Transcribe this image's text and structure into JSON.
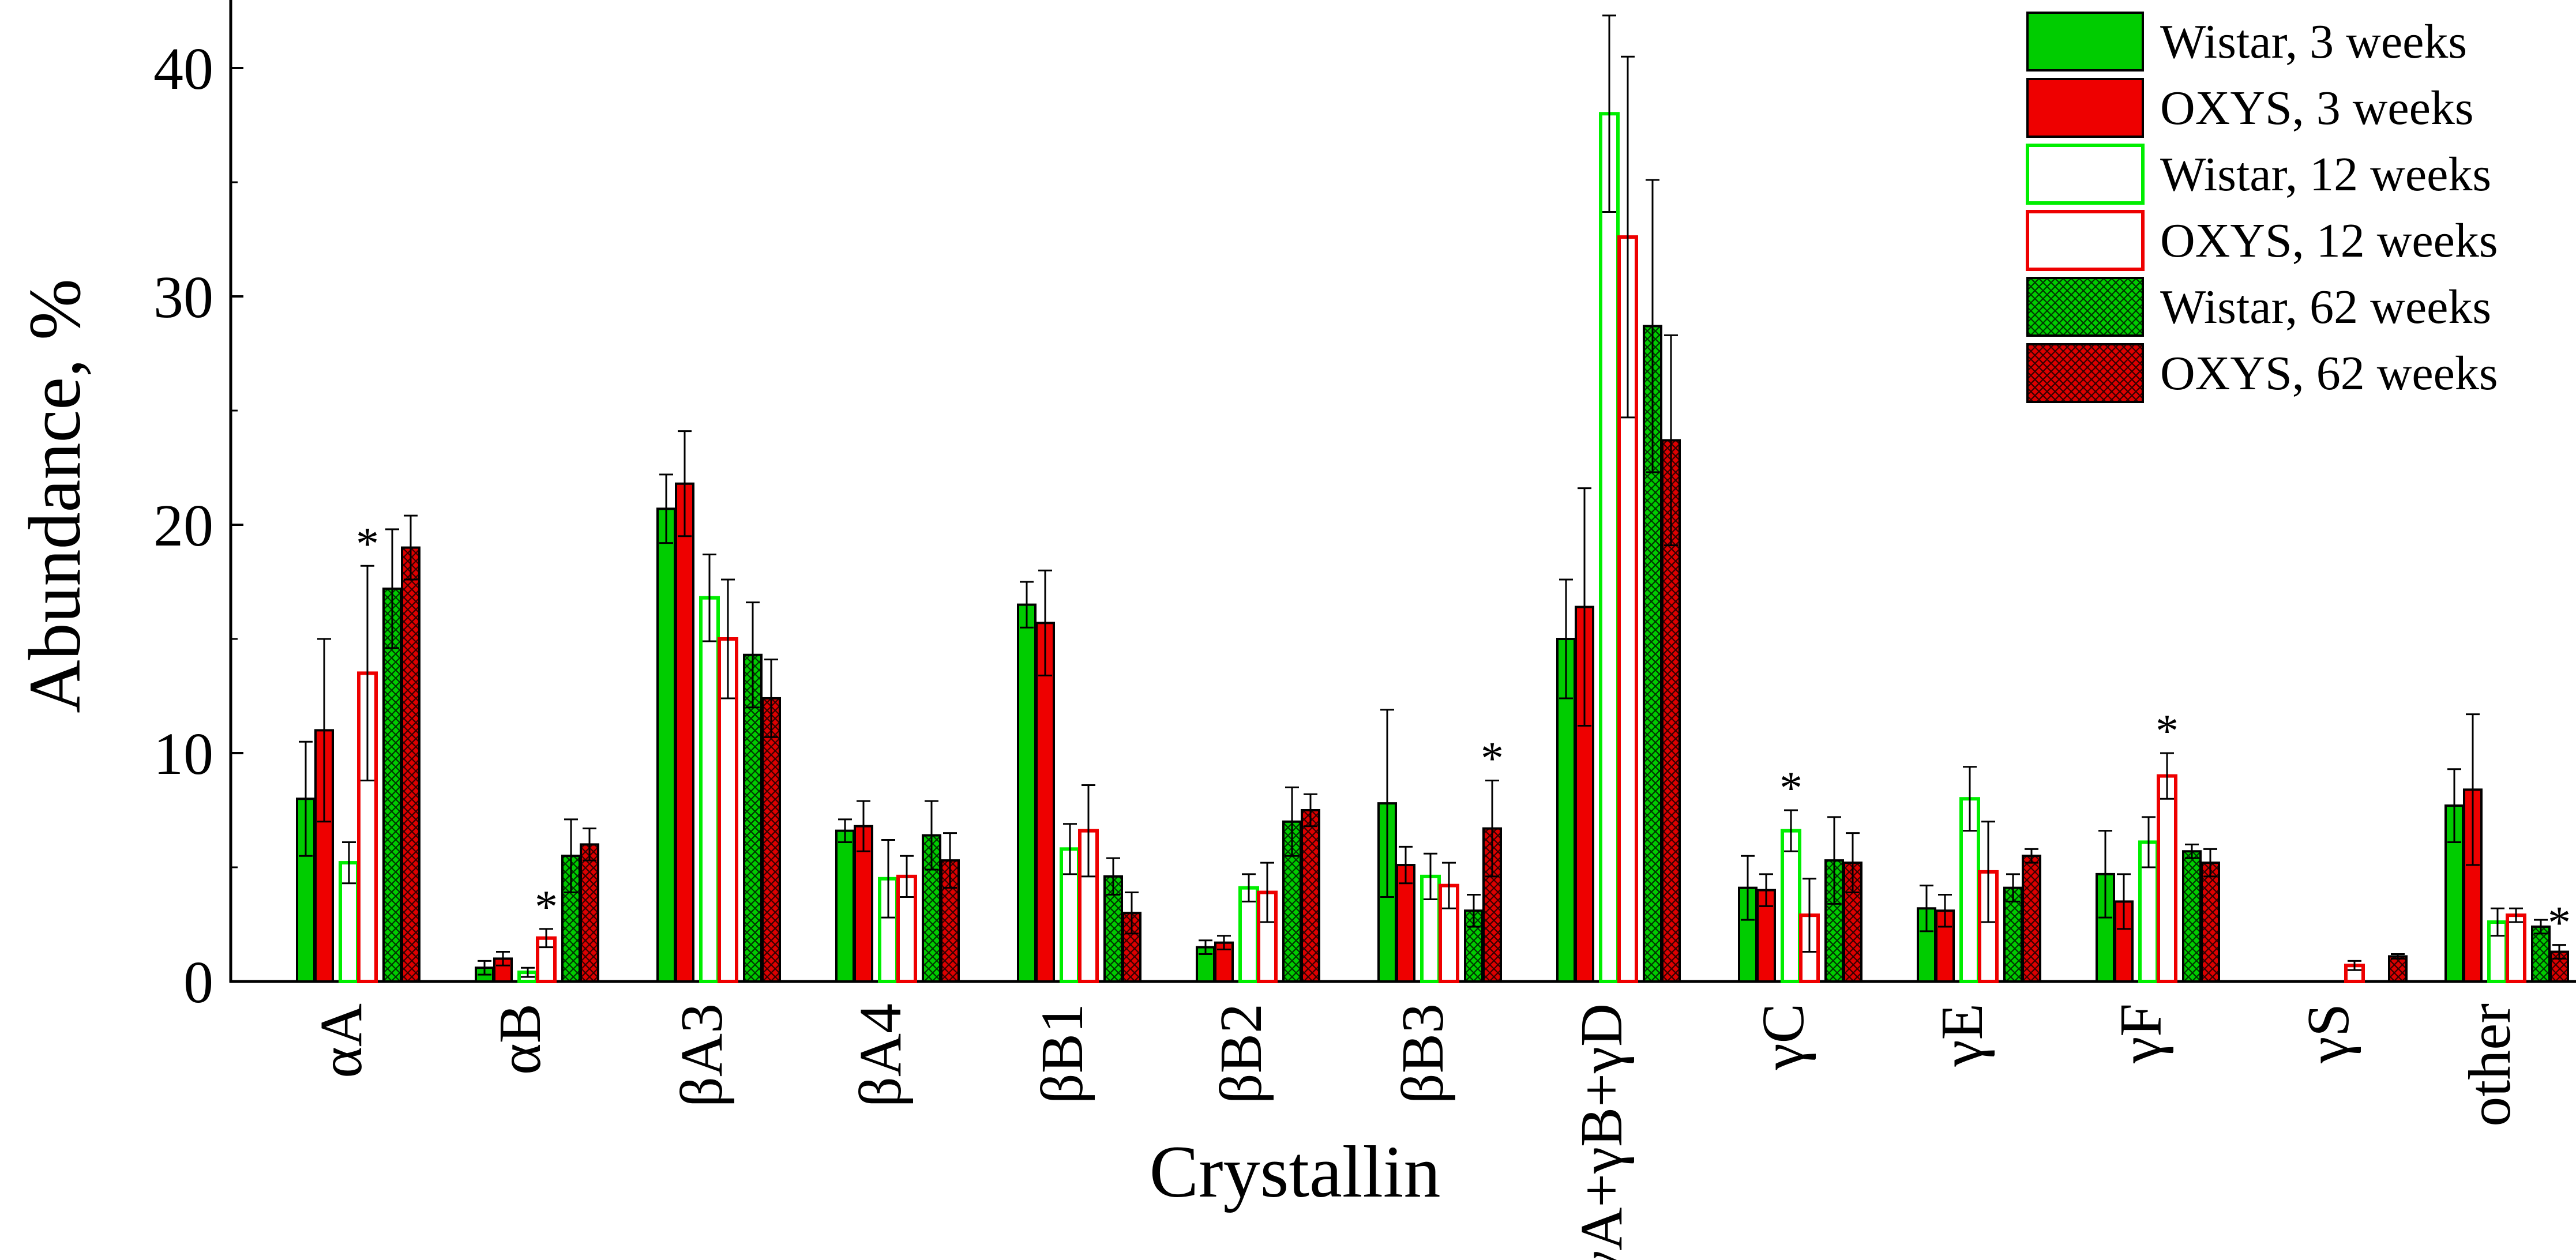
{
  "chart_data": {
    "type": "bar",
    "xlabel": "Crystallin",
    "ylabel": "Abundance, %",
    "ylim": [
      0,
      43
    ],
    "yticks": [
      0,
      10,
      20,
      30,
      40
    ],
    "grid": false,
    "legend_position": "top-right",
    "categories": [
      "αA",
      "αB",
      "βA3",
      "βA4",
      "βB1",
      "βB2",
      "βB3",
      "γA+γB+γD",
      "γC",
      "γE",
      "γF",
      "γS",
      "other"
    ],
    "series": [
      {
        "name": "Wistar, 3 weeks",
        "color": "#00cc00",
        "style": "solid",
        "values": [
          8.0,
          0.6,
          20.7,
          6.6,
          16.5,
          1.5,
          7.8,
          15.0,
          4.1,
          3.2,
          4.7,
          null,
          7.7
        ],
        "errors": [
          2.5,
          0.3,
          1.5,
          0.5,
          1.0,
          0.3,
          4.1,
          2.6,
          1.4,
          1.0,
          1.9,
          null,
          1.6
        ]
      },
      {
        "name": "OXYS, 3 weeks",
        "color": "#ee0000",
        "style": "solid",
        "values": [
          11.0,
          1.0,
          21.8,
          6.8,
          15.7,
          1.7,
          5.1,
          16.4,
          4.0,
          3.1,
          3.5,
          null,
          8.4
        ],
        "errors": [
          4.0,
          0.3,
          2.3,
          1.1,
          2.3,
          0.3,
          0.8,
          5.2,
          0.7,
          0.7,
          1.2,
          null,
          3.3
        ]
      },
      {
        "name": "Wistar, 12 weeks",
        "color": "#00ee00",
        "style": "outline",
        "values": [
          5.2,
          0.4,
          16.8,
          4.5,
          5.8,
          4.1,
          4.6,
          38.0,
          6.6,
          8.0,
          6.1,
          null,
          2.6
        ],
        "errors": [
          0.9,
          0.2,
          1.9,
          1.7,
          1.1,
          0.6,
          1.0,
          4.3,
          0.9,
          1.4,
          1.1,
          null,
          0.6
        ]
      },
      {
        "name": "OXYS, 12 weeks",
        "color": "#ee0000",
        "style": "outline",
        "values": [
          13.5,
          1.9,
          15.0,
          4.6,
          6.6,
          3.9,
          4.2,
          32.6,
          2.9,
          4.8,
          9.0,
          0.7,
          2.9
        ],
        "errors": [
          4.7,
          0.4,
          2.6,
          0.9,
          2.0,
          1.3,
          1.0,
          7.9,
          1.6,
          2.2,
          1.0,
          0.2,
          0.3
        ]
      },
      {
        "name": "Wistar, 62 weeks",
        "color": "#00cc00",
        "style": "crosshatch",
        "values": [
          17.2,
          5.5,
          14.3,
          6.4,
          4.6,
          7.0,
          3.1,
          28.7,
          5.3,
          4.1,
          5.7,
          null,
          2.4
        ],
        "errors": [
          2.6,
          1.6,
          2.3,
          1.5,
          0.8,
          1.5,
          0.7,
          6.4,
          1.9,
          0.6,
          0.3,
          null,
          0.3
        ]
      },
      {
        "name": "OXYS, 62 weeks",
        "color": "#ee0000",
        "style": "crosshatch",
        "values": [
          19.0,
          6.0,
          12.4,
          5.3,
          3.0,
          7.5,
          6.7,
          23.7,
          5.2,
          5.5,
          5.2,
          1.1,
          1.3
        ],
        "errors": [
          1.4,
          0.7,
          1.7,
          1.2,
          0.9,
          0.7,
          2.1,
          4.6,
          1.3,
          0.3,
          0.6,
          0.1,
          0.3
        ]
      }
    ],
    "significance_markers": [
      {
        "category": "αA",
        "series": "OXYS, 12 weeks",
        "text": "*"
      },
      {
        "category": "αB",
        "series": "OXYS, 12 weeks",
        "text": "*"
      },
      {
        "category": "βB3",
        "series": "OXYS, 62 weeks",
        "text": "*"
      },
      {
        "category": "γC",
        "series": "Wistar, 12 weeks",
        "text": "*"
      },
      {
        "category": "γF",
        "series": "OXYS, 12 weeks",
        "text": "*"
      },
      {
        "category": "other",
        "series": "OXYS, 62 weeks",
        "text": "*"
      }
    ]
  }
}
